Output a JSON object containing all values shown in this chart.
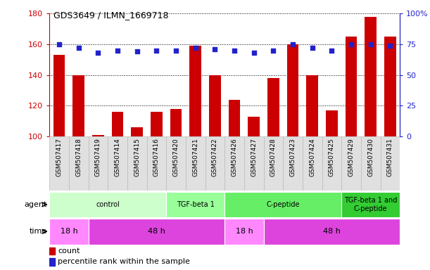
{
  "title": "GDS3649 / ILMN_1669718",
  "samples": [
    "GSM507417",
    "GSM507418",
    "GSM507419",
    "GSM507414",
    "GSM507415",
    "GSM507416",
    "GSM507420",
    "GSM507421",
    "GSM507422",
    "GSM507426",
    "GSM507427",
    "GSM507428",
    "GSM507423",
    "GSM507424",
    "GSM507425",
    "GSM507429",
    "GSM507430",
    "GSM507431"
  ],
  "count_values": [
    153,
    140,
    101,
    116,
    106,
    116,
    118,
    159,
    140,
    124,
    113,
    138,
    160,
    140,
    117,
    165,
    178,
    165
  ],
  "percentile_values": [
    75,
    72,
    68,
    70,
    69,
    70,
    70,
    72,
    71,
    70,
    68,
    70,
    75,
    72,
    70,
    75,
    75,
    74
  ],
  "bar_color": "#cc0000",
  "dot_color": "#2222cc",
  "ylim_left": [
    100,
    180
  ],
  "ylim_right": [
    0,
    100
  ],
  "yticks_left": [
    100,
    120,
    140,
    160,
    180
  ],
  "yticks_right": [
    0,
    25,
    50,
    75,
    100
  ],
  "agent_groups": [
    {
      "label": "control",
      "start": 0,
      "end": 6,
      "color": "#ccffcc"
    },
    {
      "label": "TGF-beta 1",
      "start": 6,
      "end": 9,
      "color": "#99ff99"
    },
    {
      "label": "C-peptide",
      "start": 9,
      "end": 15,
      "color": "#66ee66"
    },
    {
      "label": "TGF-beta 1 and\nC-peptide",
      "start": 15,
      "end": 18,
      "color": "#33cc33"
    }
  ],
  "time_groups": [
    {
      "label": "18 h",
      "start": 0,
      "end": 2,
      "color": "#ff88ff"
    },
    {
      "label": "48 h",
      "start": 2,
      "end": 9,
      "color": "#dd44dd"
    },
    {
      "label": "18 h",
      "start": 9,
      "end": 11,
      "color": "#ff88ff"
    },
    {
      "label": "48 h",
      "start": 11,
      "end": 18,
      "color": "#dd44dd"
    }
  ],
  "legend_count_color": "#cc0000",
  "legend_dot_color": "#2222cc",
  "sample_bg_color": "#e0e0e0",
  "sample_border_color": "#bbbbbb"
}
